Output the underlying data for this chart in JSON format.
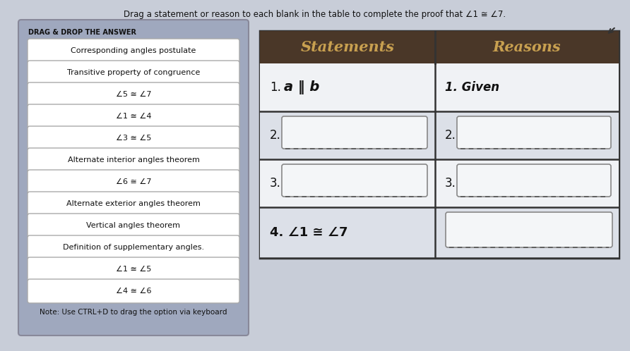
{
  "title": "Drag a statement or reason to each blank in the table to complete the proof that ∠1 ≅ ∠7.",
  "drag_drop_label": "DRAG & DROP THE ANSWER",
  "drag_items": [
    "Corresponding angles postulate",
    "Transitive property of congruence",
    "∠5 ≅ ∠7",
    "∠1 ≅ ∠4",
    "∠3 ≅ ∠5",
    "Alternate interior angles theorem",
    "∠6 ≅ ∠7",
    "Alternate exterior angles theorem",
    "Vertical angles theorem",
    "Definition of supplementary angles.",
    "∠1 ≅ ∠5",
    "∠4 ≅ ∠6"
  ],
  "table_header_statements": "Statements",
  "table_header_reasons": "Reasons",
  "table_rows": [
    {
      "num": "1.",
      "statement": "a ‖ b",
      "reason": "1. Given"
    },
    {
      "num": "2.",
      "statement": "",
      "reason": ""
    },
    {
      "num": "3.",
      "statement": "",
      "reason": ""
    },
    {
      "num": "4.",
      "statement": "4. ∠1 ≅ ∠7",
      "reason": ""
    }
  ],
  "note": "Note: Use CTRL+D to drag the option via keyboard",
  "bg_color": "#c8cdd8",
  "left_panel_bg_top": "#9099b0",
  "left_panel_bg_bottom": "#b0b8cc",
  "drag_item_bg": "#ffffff",
  "table_header_bg": "#4a3728",
  "table_header_fg": "#c8a050",
  "table_body_bg": "#dce0e8",
  "table_border_color": "#333333",
  "drag_label_color": "#111111",
  "note_color": "#111111",
  "row1_bg": "#f0f2f5",
  "row_bg": "#dce0e8"
}
